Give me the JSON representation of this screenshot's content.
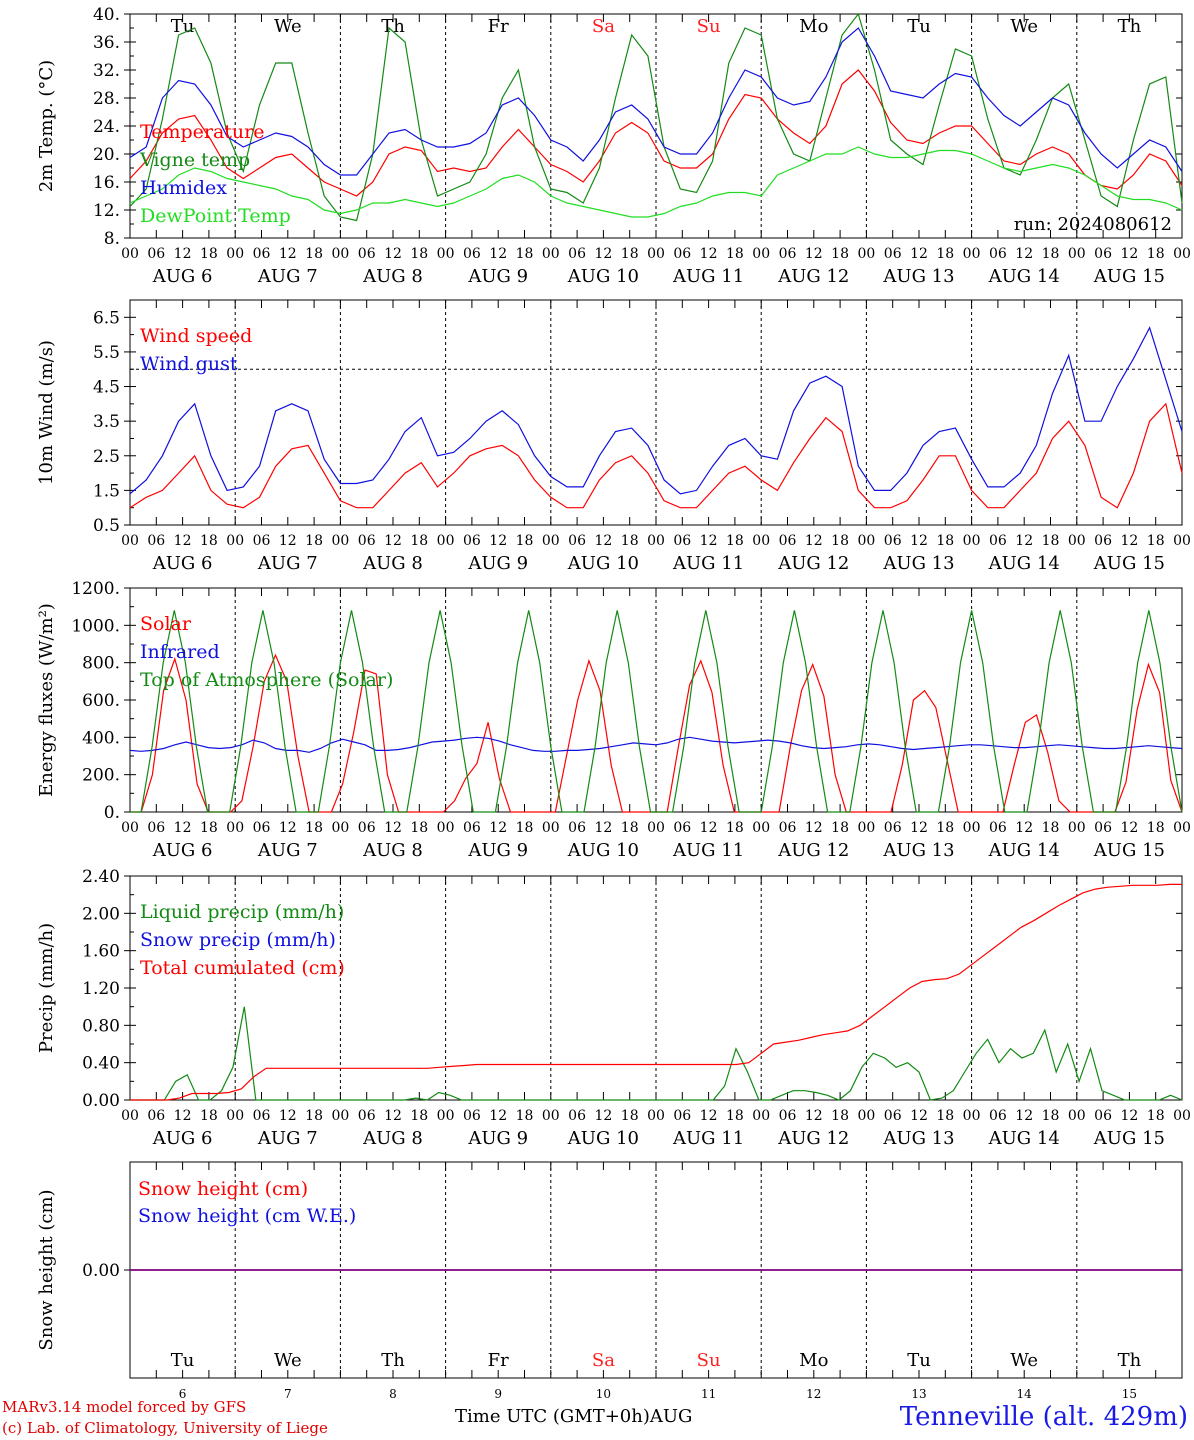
{
  "run": "run: 2024080612",
  "footer": {
    "model": "MARv3.14 model forced by GFS",
    "credit": "(c) Lab. of Climatology, University of Liege",
    "axis_title": "Time UTC (GMT+0h)",
    "month": "AUG",
    "location": "Tenneville (alt. 429m)"
  },
  "days": [
    {
      "label": "Tu",
      "date": "AUG  6",
      "num": "6",
      "weekend": false
    },
    {
      "label": "We",
      "date": "AUG  7",
      "num": "7",
      "weekend": false
    },
    {
      "label": "Th",
      "date": "AUG  8",
      "num": "8",
      "weekend": false
    },
    {
      "label": "Fr",
      "date": "AUG  9",
      "num": "9",
      "weekend": false
    },
    {
      "label": "Sa",
      "date": "AUG 10",
      "num": "10",
      "weekend": true
    },
    {
      "label": "Su",
      "date": "AUG 11",
      "num": "11",
      "weekend": true
    },
    {
      "label": "Mo",
      "date": "AUG 12",
      "num": "12",
      "weekend": false
    },
    {
      "label": "Tu",
      "date": "AUG 13",
      "num": "13",
      "weekend": false
    },
    {
      "label": "We",
      "date": "AUG 14",
      "num": "14",
      "weekend": false
    },
    {
      "label": "Th",
      "date": "AUG 15",
      "num": "15",
      "weekend": false
    }
  ],
  "hour_ticks": [
    "00",
    "06",
    "12",
    "18"
  ],
  "colors": {
    "red": "#ff0000",
    "green": "#138a13",
    "blue": "#1010e0",
    "lightgreen": "#22dd22",
    "purple": "#800080",
    "weekend": "#ff2020"
  },
  "chart_data": [
    {
      "type": "line",
      "ylabel": "2m Temp. (°C)",
      "ylim": [
        8,
        40
      ],
      "ticks": [
        "8.",
        "12.",
        "16.",
        "20.",
        "24.",
        "28.",
        "32.",
        "36.",
        "40."
      ],
      "tick_values": [
        8,
        12,
        16,
        20,
        24,
        28,
        32,
        36,
        40
      ],
      "series": [
        {
          "name": "Temperature",
          "color": "#ff0000",
          "values": [
            16.5,
            19,
            23,
            25,
            25.5,
            22,
            18,
            16.5,
            18,
            19.5,
            20,
            18,
            16,
            15,
            14,
            16,
            20,
            21,
            20.5,
            17.5,
            18,
            17.5,
            18,
            21,
            23.5,
            21,
            18.5,
            17.5,
            16,
            19,
            23,
            24.5,
            23,
            19,
            18,
            18,
            20,
            25,
            28.5,
            28,
            25,
            23,
            21.5,
            24,
            30,
            32,
            29,
            24.5,
            22,
            21.5,
            23,
            24,
            24,
            21.5,
            19,
            18.5,
            20,
            21,
            20,
            17,
            15.5,
            15,
            17,
            20,
            19,
            15.5
          ]
        },
        {
          "name": "Vigne temp",
          "color": "#138a13",
          "values": [
            12.5,
            15,
            25,
            37,
            38,
            33,
            23,
            17.5,
            27,
            33,
            33,
            23,
            14,
            11,
            10.5,
            20,
            38,
            36,
            22,
            14,
            15,
            16,
            20,
            28,
            32,
            21,
            15,
            14.5,
            13,
            18,
            28,
            37,
            34,
            21,
            15,
            14.5,
            19,
            33,
            38,
            37,
            25,
            20,
            19,
            28,
            37,
            40,
            32,
            22,
            20,
            18.5,
            27,
            35,
            34,
            25,
            18,
            17,
            22,
            28,
            30,
            22,
            14,
            12.5,
            22,
            30,
            31,
            13
          ]
        },
        {
          "name": "Humidex",
          "color": "#1010e0",
          "values": [
            19.5,
            21,
            28,
            30.5,
            30,
            27,
            22.5,
            21,
            22,
            23,
            22.5,
            21,
            18.5,
            17,
            17,
            20,
            23,
            23.5,
            22,
            21,
            21,
            21.5,
            23,
            27,
            28,
            25.5,
            22,
            21,
            19,
            22,
            26,
            27,
            25,
            21,
            20,
            20,
            23,
            28,
            32,
            31,
            28,
            27,
            27.5,
            31,
            36,
            38,
            34,
            29,
            28.5,
            28,
            30,
            31.5,
            31,
            28,
            25.5,
            24,
            26,
            28,
            27,
            23,
            20,
            18,
            20,
            22,
            21,
            17.5
          ]
        },
        {
          "name": "DewPoint Temp",
          "color": "#22dd22",
          "values": [
            13,
            14,
            15,
            17,
            18,
            17.5,
            16.5,
            16,
            15.5,
            15,
            14,
            13.5,
            12,
            11.5,
            12,
            13,
            13,
            13.5,
            13,
            12.5,
            13,
            14,
            15,
            16.5,
            17,
            16,
            14,
            13,
            12.5,
            12,
            11.5,
            11,
            11,
            11.5,
            12.5,
            13,
            14,
            14.5,
            14.5,
            14,
            17,
            18,
            19,
            20,
            20,
            21,
            20,
            19.5,
            19.5,
            20,
            20.5,
            20.5,
            20,
            19,
            18,
            17.5,
            18,
            18.5,
            18,
            17,
            15.5,
            14,
            13.5,
            13.5,
            13,
            12
          ]
        }
      ]
    },
    {
      "type": "line",
      "ylabel": "10m Wind (m/s)",
      "ylim": [
        0.5,
        7
      ],
      "ticks": [
        "0.5",
        "1.5",
        "2.5",
        "3.5",
        "4.5",
        "5.5",
        "6.5"
      ],
      "tick_values": [
        0.5,
        1.5,
        2.5,
        3.5,
        4.5,
        5.5,
        6.5
      ],
      "threshold": 5,
      "series": [
        {
          "name": "Wind speed",
          "color": "#ff0000",
          "values": [
            1,
            1.3,
            1.5,
            2,
            2.5,
            1.5,
            1.1,
            1,
            1.3,
            2.2,
            2.7,
            2.8,
            2,
            1.2,
            1,
            1,
            1.5,
            2,
            2.3,
            1.6,
            2,
            2.5,
            2.7,
            2.8,
            2.5,
            1.8,
            1.3,
            1,
            1,
            1.8,
            2.3,
            2.5,
            2,
            1.2,
            1,
            1,
            1.5,
            2,
            2.2,
            1.8,
            1.5,
            2.3,
            3,
            3.6,
            3.2,
            1.5,
            1,
            1,
            1.2,
            1.8,
            2.5,
            2.5,
            1.5,
            1,
            1,
            1.5,
            2,
            3,
            3.5,
            2.8,
            1.3,
            1,
            2,
            3.5,
            4,
            2
          ]
        },
        {
          "name": "Wind gust",
          "color": "#1010e0",
          "values": [
            1.4,
            1.8,
            2.5,
            3.5,
            4,
            2.5,
            1.5,
            1.6,
            2.2,
            3.8,
            4,
            3.8,
            2.4,
            1.7,
            1.7,
            1.8,
            2.4,
            3.2,
            3.6,
            2.5,
            2.6,
            3,
            3.5,
            3.8,
            3.4,
            2.5,
            1.9,
            1.6,
            1.6,
            2.5,
            3.2,
            3.3,
            2.8,
            1.8,
            1.4,
            1.5,
            2.2,
            2.8,
            3,
            2.5,
            2.4,
            3.8,
            4.6,
            4.8,
            4.5,
            2.2,
            1.5,
            1.5,
            2,
            2.8,
            3.2,
            3.3,
            2.4,
            1.6,
            1.6,
            2,
            2.8,
            4.3,
            5.4,
            3.5,
            3.5,
            4.5,
            5.3,
            6.2,
            4.7,
            3.2
          ]
        }
      ]
    },
    {
      "type": "line",
      "ylabel": "Energy fluxes (W/m²)",
      "ylim": [
        0,
        1200
      ],
      "ticks": [
        "0.",
        "200.",
        "400.",
        "600.",
        "800.",
        "1000.",
        "1200."
      ],
      "tick_values": [
        0,
        200,
        400,
        600,
        800,
        1000,
        1200
      ],
      "series": [
        {
          "name": "Solar",
          "color": "#ff0000",
          "values": [
            0,
            0,
            200,
            650,
            820,
            600,
            150,
            0,
            0,
            0,
            60,
            350,
            700,
            840,
            700,
            300,
            0,
            0,
            0,
            150,
            430,
            760,
            740,
            200,
            0,
            0,
            0,
            0,
            0,
            60,
            180,
            260,
            480,
            180,
            0,
            0,
            0,
            0,
            0,
            300,
            600,
            810,
            650,
            250,
            0,
            0,
            0,
            0,
            0,
            350,
            680,
            810,
            640,
            250,
            0,
            0,
            0,
            0,
            0,
            350,
            650,
            790,
            620,
            200,
            0,
            0,
            0,
            0,
            0,
            250,
            600,
            650,
            560,
            280,
            0,
            0,
            0,
            0,
            0,
            250,
            480,
            520,
            320,
            60,
            0,
            0,
            0,
            0,
            0,
            160,
            550,
            790,
            640,
            170,
            0
          ]
        },
        {
          "name": "Infrared",
          "color": "#1010e0",
          "values": [
            330,
            325,
            330,
            340,
            360,
            375,
            360,
            345,
            340,
            345,
            360,
            385,
            370,
            340,
            330,
            330,
            320,
            340,
            370,
            390,
            375,
            360,
            330,
            330,
            335,
            345,
            360,
            375,
            380,
            385,
            395,
            400,
            395,
            380,
            360,
            345,
            330,
            325,
            325,
            330,
            330,
            335,
            340,
            350,
            360,
            370,
            365,
            360,
            370,
            390,
            400,
            390,
            380,
            375,
            370,
            375,
            380,
            385,
            380,
            370,
            355,
            345,
            340,
            345,
            350,
            360,
            365,
            360,
            350,
            340,
            335,
            340,
            345,
            350,
            355,
            360,
            360,
            355,
            350,
            345,
            345,
            350,
            355,
            360,
            355,
            350,
            345,
            340,
            340,
            345,
            350,
            355,
            350,
            345,
            340
          ]
        },
        {
          "name": "Top of Atmosphere (Solar)",
          "color": "#138a13",
          "values": [
            0,
            0,
            350,
            800,
            1080,
            800,
            350,
            0,
            0,
            0,
            350,
            800,
            1080,
            800,
            350,
            0,
            0,
            0,
            350,
            800,
            1080,
            800,
            350,
            0,
            0,
            0,
            350,
            800,
            1080,
            800,
            350,
            0,
            0,
            0,
            350,
            800,
            1080,
            800,
            350,
            0,
            0,
            0,
            350,
            800,
            1080,
            800,
            350,
            0,
            0,
            0,
            350,
            800,
            1080,
            800,
            350,
            0,
            0,
            0,
            350,
            800,
            1080,
            800,
            350,
            0,
            0,
            0,
            350,
            800,
            1080,
            800,
            350,
            0,
            0,
            0,
            350,
            800,
            1080,
            800,
            350,
            0,
            0,
            0,
            350,
            800,
            1080,
            800,
            350,
            0,
            0,
            0,
            350,
            800,
            1080,
            800,
            350,
            0
          ]
        }
      ]
    },
    {
      "type": "line",
      "ylabel": "Precip (mm/h)",
      "ylim": [
        0,
        2.4
      ],
      "ticks": [
        "0.00",
        "0.40",
        "0.80",
        "1.20",
        "1.60",
        "2.00",
        "2.40"
      ],
      "tick_values": [
        0,
        0.4,
        0.8,
        1.2,
        1.6,
        2,
        2.4
      ],
      "series": [
        {
          "name": "Liquid precip (mm/h)",
          "color": "#138a13",
          "values": [
            0,
            0,
            0,
            0,
            0.2,
            0.27,
            0,
            0,
            0.1,
            0.35,
            1.0,
            0,
            0,
            0,
            0,
            0,
            0,
            0,
            0,
            0,
            0,
            0,
            0,
            0,
            0,
            0.02,
            0,
            0.08,
            0.05,
            0,
            0,
            0,
            0,
            0,
            0,
            0,
            0,
            0,
            0,
            0,
            0,
            0,
            0,
            0,
            0,
            0,
            0,
            0,
            0,
            0,
            0,
            0,
            0.15,
            0.55,
            0.3,
            0,
            0,
            0.05,
            0.1,
            0.1,
            0.08,
            0.05,
            0,
            0.1,
            0.35,
            0.5,
            0.45,
            0.35,
            0.4,
            0.3,
            0,
            0.02,
            0.1,
            0.3,
            0.5,
            0.65,
            0.4,
            0.55,
            0.45,
            0.5,
            0.75,
            0.3,
            0.6,
            0.2,
            0.55,
            0.1,
            0.05,
            0,
            0,
            0,
            0,
            0.05,
            0
          ]
        },
        {
          "name": "Snow precip (mm/h)",
          "color": "#1010e0",
          "values": []
        },
        {
          "name": "Total cumulated (cm)",
          "color": "#ff0000",
          "values": [
            0,
            0,
            0,
            0,
            0.02,
            0.07,
            0.07,
            0.07,
            0.08,
            0.12,
            0.25,
            0.34,
            0.34,
            0.34,
            0.34,
            0.34,
            0.34,
            0.34,
            0.34,
            0.34,
            0.34,
            0.34,
            0.34,
            0.34,
            0.34,
            0.35,
            0.36,
            0.37,
            0.38,
            0.38,
            0.38,
            0.38,
            0.38,
            0.38,
            0.38,
            0.38,
            0.38,
            0.38,
            0.38,
            0.38,
            0.38,
            0.38,
            0.38,
            0.38,
            0.38,
            0.38,
            0.38,
            0.38,
            0.38,
            0.38,
            0.4,
            0.5,
            0.6,
            0.62,
            0.64,
            0.67,
            0.7,
            0.72,
            0.74,
            0.8,
            0.9,
            1.0,
            1.1,
            1.2,
            1.27,
            1.29,
            1.3,
            1.35,
            1.45,
            1.55,
            1.65,
            1.75,
            1.85,
            1.92,
            2.0,
            2.08,
            2.15,
            2.22,
            2.26,
            2.28,
            2.29,
            2.3,
            2.3,
            2.3,
            2.31,
            2.31
          ]
        }
      ]
    },
    {
      "type": "line",
      "ylabel": "Snow height (cm)",
      "ylim": [
        -1,
        1
      ],
      "ticks": [
        "0.00"
      ],
      "tick_values": [
        0
      ],
      "series": [
        {
          "name": "Snow height (cm)",
          "color": "#ff0000",
          "values": [
            0,
            0
          ]
        },
        {
          "name": "Snow height (cm W.E.)",
          "color": "#1010e0",
          "values": [
            0,
            0
          ]
        }
      ]
    }
  ]
}
